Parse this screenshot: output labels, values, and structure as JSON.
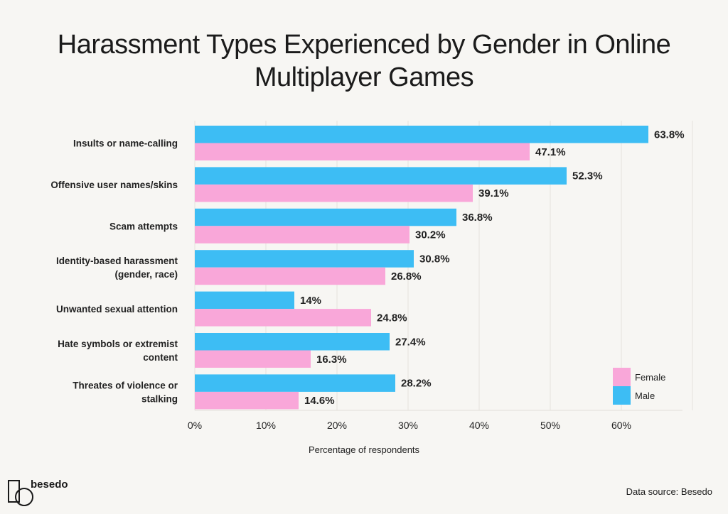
{
  "chart_data": {
    "type": "bar",
    "orientation": "horizontal",
    "title": "Harassment Types Experienced by Gender in Online Multiplayer Games",
    "xlabel": "Percentage of respondents",
    "ylabel": "",
    "xlim": [
      0,
      68
    ],
    "xticks": [
      0,
      10,
      20,
      30,
      40,
      50,
      60
    ],
    "xtick_labels": [
      "0%",
      "10%",
      "20%",
      "30%",
      "40%",
      "50%",
      "60%"
    ],
    "grid": true,
    "legend_placement": "bottom-right",
    "categories": [
      [
        "Insults or name-calling"
      ],
      [
        "Offensive user names/skins"
      ],
      [
        "Scam attempts"
      ],
      [
        "Identity-based harassment",
        "(gender, race)"
      ],
      [
        "Unwanted sexual attention"
      ],
      [
        "Hate symbols or extremist",
        "content"
      ],
      [
        "Threates of violence or",
        "stalking"
      ]
    ],
    "series": [
      {
        "name": "Male",
        "color": "#3dbdf4",
        "values": [
          63.8,
          52.3,
          36.8,
          30.8,
          14,
          27.4,
          28.2
        ],
        "labels": [
          "63.8%",
          "52.3%",
          "36.8%",
          "30.8%",
          "14%",
          "27.4%",
          "28.2%"
        ]
      },
      {
        "name": "Female",
        "color": "#f9a7d9",
        "values": [
          47.1,
          39.1,
          30.2,
          26.8,
          24.8,
          16.3,
          14.6
        ],
        "labels": [
          "47.1%",
          "39.1%",
          "30.2%",
          "26.8%",
          "24.8%",
          "16.3%",
          "14.6%"
        ]
      }
    ],
    "legend_order": [
      "Female",
      "Male"
    ]
  },
  "branding": {
    "logo_text": "besedo"
  },
  "source": "Data source: Besedo"
}
